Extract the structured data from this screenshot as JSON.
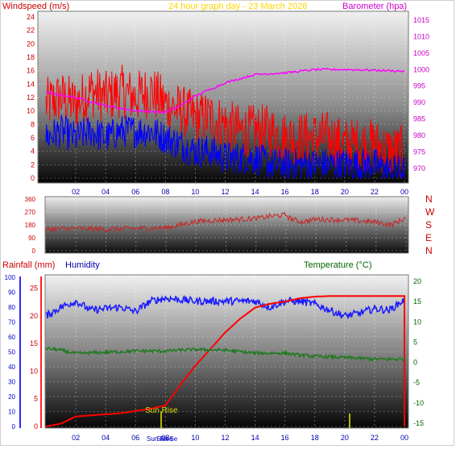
{
  "header": {
    "title": "24 hour graph day - 23 March 2026",
    "left_label": "Windspeed (m/s)",
    "right_label": "Barometer (hpa)"
  },
  "direction_labels": [
    "N",
    "W",
    "S",
    "E",
    "N"
  ],
  "bottom_header": {
    "rainfall_label": "Rainfall (mm)",
    "humidity_label": "Humidity",
    "temperature_label": "Temperature (°C)"
  },
  "annotations": {
    "sunrise": "Sun Rise",
    "sunrise_axis": "Sun Rise",
    "sunset_axis": "Sun Se"
  },
  "colors": {
    "wind_speed": "#ff0000",
    "wind_gust_lower": "#0000ff",
    "barometer": "#ff00ff",
    "wind_direction": "#cc2222",
    "humidity": "#1a1aff",
    "temperature": "#1f7a1f",
    "rainfall": "#ff0000",
    "title": "#ffd400",
    "axis_left": "#cc0000",
    "axis_right": "#cc00cc",
    "axis_blue": "#0000cc",
    "axis_green": "#006600",
    "sun_marker": "#b5b500"
  },
  "chart_data": [
    {
      "type": "line",
      "name": "wind-barometer",
      "x_ticks": [
        "02",
        "04",
        "06",
        "08",
        "10",
        "12",
        "14",
        "16",
        "18",
        "20",
        "22",
        "00"
      ],
      "yleft_ticks": [
        "0",
        "2",
        "4",
        "6",
        "8",
        "10",
        "12",
        "14",
        "16",
        "18",
        "20",
        "22",
        "24"
      ],
      "yright_ticks": [
        "970",
        "975",
        "980",
        "985",
        "990",
        "995",
        "1000",
        "1005",
        "1010",
        "1015"
      ],
      "ylim_left": [
        0,
        24
      ],
      "ylim_right": [
        967,
        1016
      ],
      "xlim_hours": [
        0,
        24
      ],
      "series": [
        {
          "name": "Windspeed (m/s)",
          "axis": "left",
          "hours": [
            0,
            1,
            2,
            3,
            4,
            5,
            6,
            7,
            8,
            9,
            10,
            11,
            12,
            13,
            14,
            15,
            16,
            17,
            18,
            19,
            20,
            21,
            22,
            23,
            24
          ],
          "values": [
            11,
            12,
            11,
            13,
            12,
            13,
            12,
            13,
            11,
            10,
            9,
            9,
            8,
            7,
            7,
            7,
            6,
            6,
            6,
            6,
            5,
            5,
            5,
            4,
            4
          ],
          "noise": 4
        },
        {
          "name": "lower wind",
          "axis": "left",
          "hours": [
            0,
            1,
            2,
            3,
            4,
            5,
            6,
            7,
            8,
            9,
            10,
            11,
            12,
            13,
            14,
            15,
            16,
            17,
            18,
            19,
            20,
            21,
            22,
            23,
            24
          ],
          "values": [
            6,
            7,
            6,
            7,
            6,
            7,
            7,
            7,
            6,
            5,
            4,
            4,
            3,
            3,
            3,
            2,
            2,
            2,
            2,
            2,
            2,
            2,
            2,
            1,
            1
          ],
          "noise": 2.5
        },
        {
          "name": "Barometer (hpa)",
          "axis": "right",
          "hours": [
            0,
            2,
            4,
            6,
            8,
            9,
            10,
            12,
            14,
            16,
            18,
            20,
            22,
            24
          ],
          "values": [
            993,
            991.5,
            989,
            987.5,
            987,
            989,
            992,
            996,
            998.5,
            999,
            1000,
            1000,
            999.8,
            999.5
          ],
          "noise": 0.3
        }
      ]
    },
    {
      "type": "line",
      "name": "wind-direction",
      "x_ticks": [
        "02",
        "04",
        "06",
        "08",
        "10",
        "12",
        "14",
        "16",
        "18",
        "20",
        "22",
        "00"
      ],
      "y_ticks": [
        "0",
        "90",
        "180",
        "270",
        "360"
      ],
      "ylim": [
        0,
        360
      ],
      "series": [
        {
          "name": "Wind direction",
          "hours": [
            0,
            2,
            4,
            6,
            8,
            9,
            10,
            12,
            14,
            15,
            16,
            16.2,
            17,
            18,
            20,
            22,
            23,
            24
          ],
          "values": [
            150,
            155,
            150,
            155,
            160,
            180,
            205,
            215,
            225,
            240,
            250,
            230,
            200,
            220,
            215,
            200,
            180,
            230
          ],
          "noise": 18
        }
      ]
    },
    {
      "type": "line",
      "name": "rain-humidity-temperature",
      "x_ticks": [
        "02",
        "04",
        "06",
        "08",
        "10",
        "12",
        "14",
        "16",
        "18",
        "20",
        "22",
        "00"
      ],
      "y_humidity_ticks": [
        "0",
        "10",
        "20",
        "30",
        "40",
        "50",
        "60",
        "70",
        "80",
        "90",
        "100"
      ],
      "y_rain_ticks": [
        "0",
        "5",
        "10",
        "15",
        "20",
        "25"
      ],
      "y_temp_ticks": [
        "-15",
        "-10",
        "-5",
        "0",
        "5",
        "10",
        "15",
        "20"
      ],
      "ylim_humidity": [
        0,
        100
      ],
      "ylim_rain": [
        0,
        27
      ],
      "ylim_temp": [
        -15,
        20
      ],
      "series": [
        {
          "name": "Humidity",
          "hours": [
            0,
            1,
            2,
            3,
            4,
            5,
            6,
            7,
            8,
            10,
            12,
            14,
            15,
            16,
            17,
            18,
            19,
            20,
            21,
            22,
            23,
            24
          ],
          "values": [
            74,
            80,
            84,
            78,
            79,
            80,
            77,
            84,
            86,
            84,
            84,
            84,
            80,
            84,
            84,
            82,
            78,
            74,
            76,
            79,
            78,
            85
          ],
          "noise": 2.5
        },
        {
          "name": "Rainfall (mm)",
          "hours": [
            0,
            1,
            2,
            3,
            4,
            5,
            6,
            7,
            8,
            9,
            10,
            11,
            12,
            13,
            14,
            15,
            16,
            17,
            18,
            19,
            20,
            24
          ],
          "values": [
            0,
            0.5,
            1.8,
            2.0,
            2.2,
            2.4,
            2.8,
            3.2,
            3.8,
            7.5,
            11,
            14,
            17,
            19.5,
            21.5,
            22.2,
            22.6,
            23.2,
            23.5,
            23.6,
            23.6,
            23.6
          ],
          "noise": 0
        },
        {
          "name": "Temperature (°C)",
          "hours": [
            0,
            1,
            2,
            4,
            6,
            8,
            10,
            12,
            14,
            16,
            17,
            18,
            20,
            22,
            24
          ],
          "values": [
            3.5,
            3,
            2.2,
            2.5,
            2.8,
            2.8,
            3.2,
            3.0,
            2.3,
            2.3,
            1.8,
            1.5,
            1.2,
            0.8,
            0.8
          ],
          "noise": 0.4
        }
      ]
    }
  ]
}
